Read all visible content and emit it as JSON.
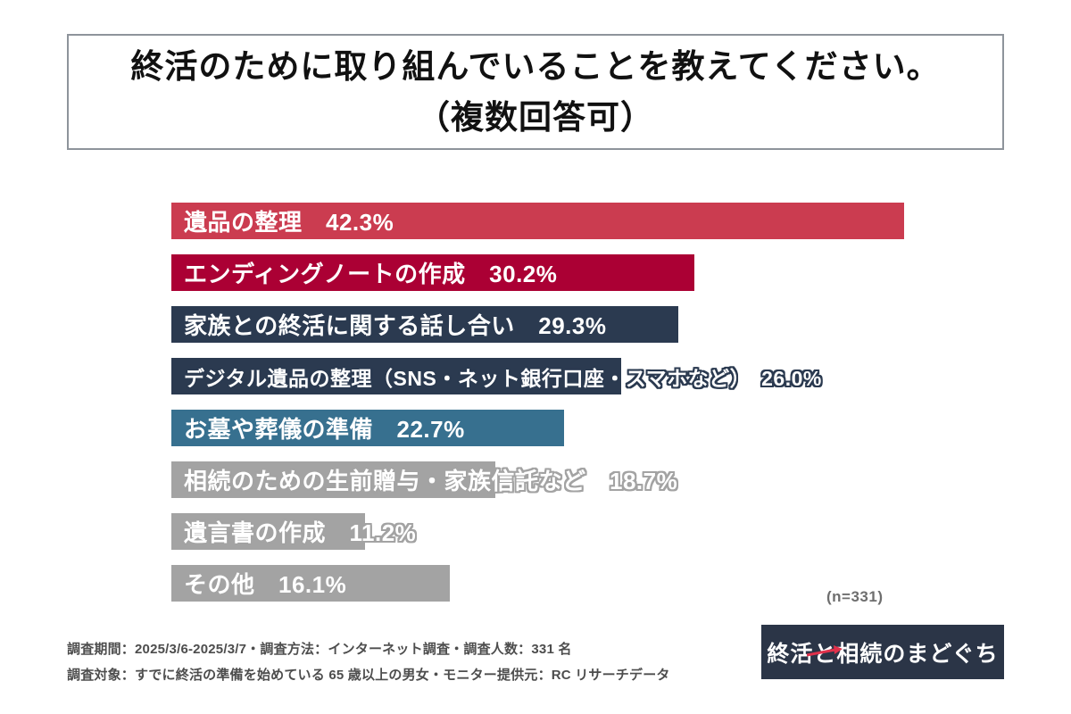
{
  "title": {
    "line1": "終活のために取り組んでいることを教えてください。",
    "line2": "（複数回答可）"
  },
  "chart_data": {
    "type": "bar",
    "orientation": "horizontal",
    "title": "終活のために取り組んでいることを教えてください。（複数回答可）",
    "categories": [
      "遺品の整理",
      "エンディングノートの作成",
      "家族との終活に関する話し合い",
      "デジタル遺品の整理（SNS・ネット銀行口座・スマホなど）",
      "お墓や葬儀の準備",
      "相続のための生前贈与・家族信託など",
      "遺言書の作成",
      "その他"
    ],
    "values": [
      42.3,
      30.2,
      29.3,
      26.0,
      22.7,
      18.7,
      11.2,
      16.1
    ],
    "unit": "%",
    "xlim": [
      0,
      45
    ],
    "grid": false,
    "legend": "none",
    "value_label_position": "inside-after-category",
    "bar_colors": [
      "#cb3c50",
      "#ab0034",
      "#2b3a50",
      "#2b3a50",
      "#37708f",
      "#a3a3a3",
      "#a3a3a3",
      "#a3a3a3"
    ],
    "sample_size_label": "(n=331)"
  },
  "footer": {
    "line1": "調査期間：2025/3/6-2025/3/7・調査方法：インターネット調査・調査人数：331 名",
    "line2": "調査対象：すでに終活の準備を始めている 65 歳以上の男女・モニター提供元：RC リサーチデータ"
  },
  "logo": {
    "text_before": "終活",
    "text_to": "と",
    "text_after": "相続のまどぐち",
    "bg_color": "#2b3547",
    "arrow_color": "#e0314b"
  }
}
